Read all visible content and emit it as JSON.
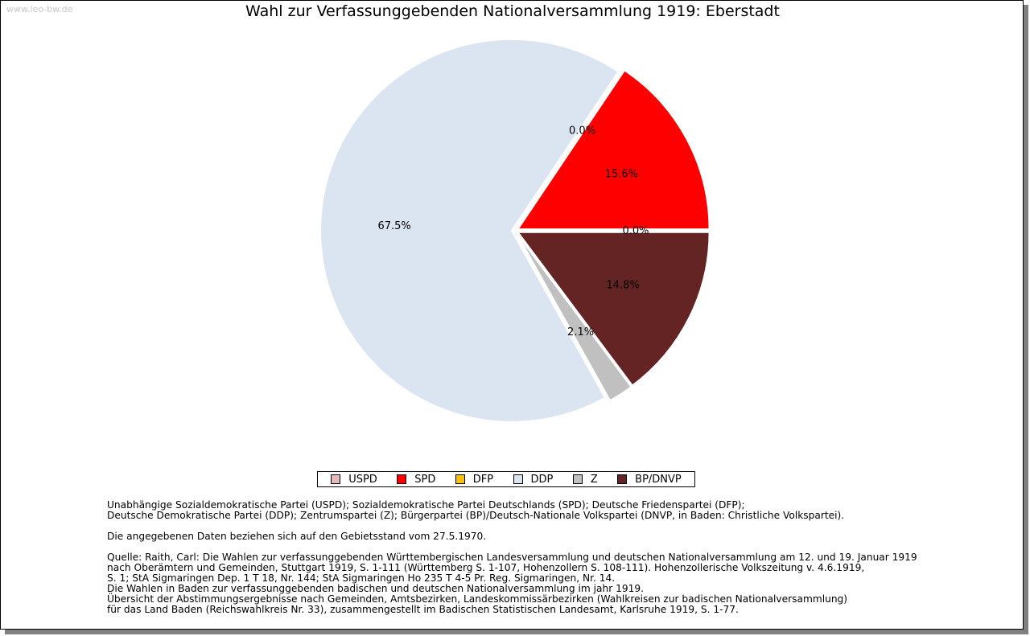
{
  "watermark": "www.leo-bw.de",
  "chart_data": {
    "type": "pie",
    "title": "Wahl zur Verfassunggebenden Nationalversammlung 1919: Eberstadt",
    "slices": [
      {
        "name": "BP/DNVP",
        "value": 14.8,
        "label": "14.8%",
        "color": "#632423"
      },
      {
        "name": "Z",
        "value": 2.1,
        "label": "2.1%",
        "color": "#c0c0c0"
      },
      {
        "name": "DDP",
        "value": 67.5,
        "label": "67.5%",
        "color": "#dbe5f1"
      },
      {
        "name": "DFP",
        "value": 0.0,
        "label": "0.0%",
        "color": "#ffc000"
      },
      {
        "name": "SPD",
        "value": 15.6,
        "label": "15.6%",
        "color": "#ff0000"
      },
      {
        "name": "USPD",
        "value": 0.0,
        "label": "0.0%",
        "color": "#e6b9b8"
      }
    ],
    "legend": [
      {
        "name": "USPD",
        "color": "#e6b9b8"
      },
      {
        "name": "SPD",
        "color": "#ff0000"
      },
      {
        "name": "DFP",
        "color": "#ffc000"
      },
      {
        "name": "DDP",
        "color": "#dbe5f1"
      },
      {
        "name": "Z",
        "color": "#c0c0c0"
      },
      {
        "name": "BP/DNVP",
        "color": "#632423"
      }
    ],
    "legend_position": "bottom"
  },
  "notes": {
    "line1": "Unabhängige Sozialdemokratische Partei (USPD); Sozialdemokratische Partei Deutschlands (SPD); Deutsche Friedenspartei (DFP);",
    "line2": "Deutsche Demokratische Partei (DDP); Zentrumspartei (Z); Bürgerpartei (BP)/Deutsch-Nationale Volkspartei (DNVP, in Baden: Christliche Volkspartei).",
    "line3": "Die angegebenen Daten beziehen sich auf den Gebietsstand vom 27.5.1970.",
    "line4": "Quelle: Raith, Carl: Die Wahlen zur verfassunggebenden Württembergischen Landesversammlung und deutschen Nationalversammlung am 12. und 19. Januar 1919",
    "line5": "nach Oberämtern und Gemeinden, Stuttgart 1919, S. 1-111 (Württemberg S. 1-107, Hohenzollern S. 108-111). Hohenzollerische Volkszeitung v. 4.6.1919,",
    "line6": "S. 1; StA Sigmaringen Dep. 1 T 18, Nr. 144; StA Sigmaringen Ho 235 T 4-5 Pr. Reg. Sigmaringen, Nr. 14.",
    "line7": "Die Wahlen in Baden zur verfassunggebenden badischen und deutschen Nationalversammlung im jahr 1919.",
    "line8": "Übersicht der Abstimmungsergebnisse nach Gemeinden, Amtsbezirken, Landeskommissärbezirken (Wahlkreisen zur badischen Nationalversammlung)",
    "line9": "für das Land Baden (Reichswahlkreis Nr. 33), zusammengestellt im Badischen Statistischen Landesamt, Karlsruhe 1919, S. 1-77."
  }
}
